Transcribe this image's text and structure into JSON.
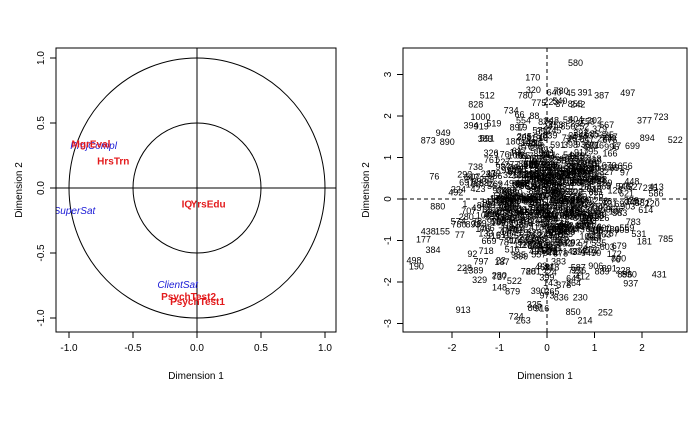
{
  "chart_data": [
    {
      "type": "scatter",
      "subtype": "correlation-circle",
      "xlabel": "Dimension  1",
      "ylabel": "Dimension  2",
      "xlim": [
        -1.0,
        1.0
      ],
      "ylim": [
        -1.0,
        1.0
      ],
      "xticks": [
        "-1.0",
        "-0.5",
        "0.0",
        "0.5",
        "1.0"
      ],
      "yticks": [
        "-1.0",
        "-0.5",
        "0.0",
        "0.5",
        "1.0"
      ],
      "circles": [
        0.5,
        1.0
      ],
      "reference_lines": {
        "x": 0,
        "y": 0,
        "style": "solid"
      },
      "variables": [
        {
          "label": "ProjCompl",
          "x": -0.99,
          "y": 0.3,
          "color": "#1a1ad6",
          "italic": true,
          "bold": false
        },
        {
          "label": "HrsTrn",
          "x": -0.78,
          "y": 0.18,
          "color": "#e31a1c",
          "italic": false,
          "bold": true
        },
        {
          "label": "MgrEval",
          "x": -0.98,
          "y": 0.31,
          "color": "#e31a1c",
          "italic": false,
          "bold": true
        },
        {
          "label": "SuperSat",
          "x": -1.12,
          "y": -0.2,
          "color": "#1a1ad6",
          "italic": true,
          "bold": false
        },
        {
          "label": "YrsEdu",
          "x": -0.05,
          "y": -0.15,
          "color": "#e31a1c",
          "italic": false,
          "bold": true
        },
        {
          "label": "IQ",
          "x": -0.12,
          "y": -0.15,
          "color": "#e31a1c",
          "italic": false,
          "bold": true
        },
        {
          "label": "ClientSat",
          "x": -0.31,
          "y": -0.77,
          "color": "#1a1ad6",
          "italic": true,
          "bold": false
        },
        {
          "label": "PsychTest2",
          "x": -0.28,
          "y": -0.86,
          "color": "#e31a1c",
          "italic": false,
          "bold": true
        },
        {
          "label": "PsychTest1",
          "x": -0.21,
          "y": -0.9,
          "color": "#e31a1c",
          "italic": false,
          "bold": true
        }
      ]
    },
    {
      "type": "scatter",
      "subtype": "individuals-map",
      "xlabel": "Dimension  1",
      "ylabel": "Dimension  2",
      "xlim": [
        -2.9,
        3.0
      ],
      "ylim": [
        -3.2,
        3.3
      ],
      "xticks": [
        "-2",
        "-1",
        "0",
        "1",
        "2"
      ],
      "yticks": [
        "-3",
        "-2",
        "-1",
        "0",
        "1",
        "2",
        "3"
      ],
      "reference_lines": {
        "x": 0,
        "y": 0,
        "style": "dashed"
      },
      "labeled_points": [
        {
          "label": "580",
          "x": 0.6,
          "y": 3.2
        },
        {
          "label": "884",
          "x": -1.3,
          "y": 2.85
        },
        {
          "label": "170",
          "x": -0.3,
          "y": 2.85
        },
        {
          "label": "640",
          "x": 0.15,
          "y": 2.5
        },
        {
          "label": "45",
          "x": 0.5,
          "y": 2.48
        },
        {
          "label": "391",
          "x": 0.8,
          "y": 2.5
        },
        {
          "label": "387",
          "x": 1.15,
          "y": 2.42
        },
        {
          "label": "497",
          "x": 1.7,
          "y": 2.48
        },
        {
          "label": "828",
          "x": -1.5,
          "y": 2.2
        },
        {
          "label": "242",
          "x": 0.65,
          "y": 2.2
        },
        {
          "label": "1000",
          "x": -1.4,
          "y": 1.9
        },
        {
          "label": "723",
          "x": 2.4,
          "y": 1.9
        },
        {
          "label": "394",
          "x": -1.6,
          "y": 1.7
        },
        {
          "label": "890",
          "x": -2.1,
          "y": 1.3
        },
        {
          "label": "522",
          "x": 2.7,
          "y": 1.35
        },
        {
          "label": "699",
          "x": 1.8,
          "y": 1.2
        },
        {
          "label": "498",
          "x": -2.8,
          "y": -1.55
        },
        {
          "label": "190",
          "x": -2.75,
          "y": -1.7
        },
        {
          "label": "438",
          "x": -2.5,
          "y": -0.85
        },
        {
          "label": "177",
          "x": -2.6,
          "y": -1.05
        },
        {
          "label": "384",
          "x": -2.4,
          "y": -1.3
        },
        {
          "label": "880",
          "x": -2.3,
          "y": -0.25
        },
        {
          "label": "181",
          "x": 2.05,
          "y": -1.1
        },
        {
          "label": "1389",
          "x": -1.55,
          "y": -1.8
        },
        {
          "label": "148",
          "x": -1.0,
          "y": -2.2
        },
        {
          "label": "737",
          "x": -1.0,
          "y": -1.95
        },
        {
          "label": "836",
          "x": 0.3,
          "y": -2.45
        },
        {
          "label": "230",
          "x": 0.7,
          "y": -2.45
        },
        {
          "label": "807",
          "x": -0.25,
          "y": -2.7
        },
        {
          "label": "724",
          "x": -0.65,
          "y": -2.9
        },
        {
          "label": "263",
          "x": -0.5,
          "y": -3.0
        },
        {
          "label": "214",
          "x": 0.8,
          "y": -3.0
        },
        {
          "label": "850",
          "x": 0.55,
          "y": -2.8
        },
        {
          "label": "228",
          "x": 1.6,
          "y": -1.8
        },
        {
          "label": "903",
          "x": 1.7,
          "y": -0.25
        },
        {
          "label": "973",
          "x": 0.0,
          "y": -2.4
        }
      ]
    }
  ]
}
